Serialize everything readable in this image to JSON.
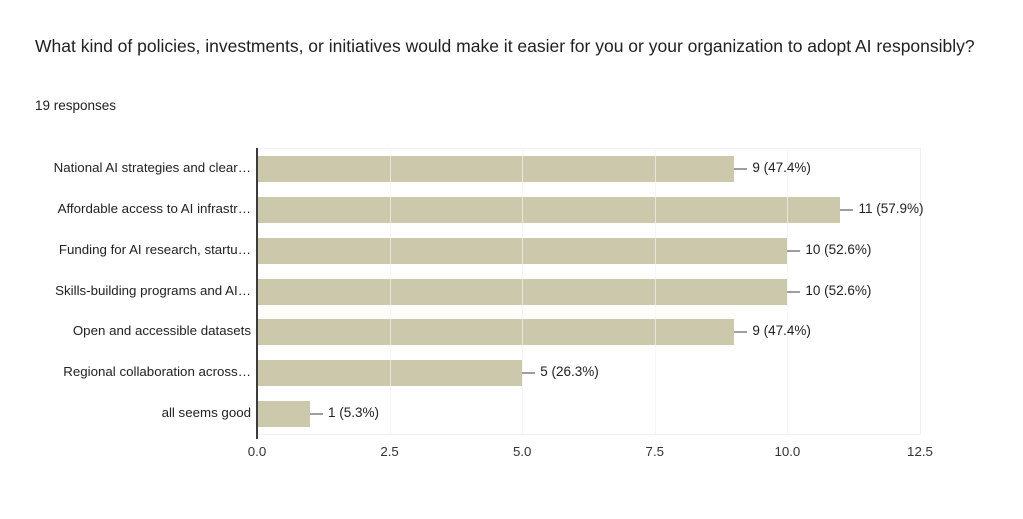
{
  "header": {
    "title": "What kind of policies, investments, or initiatives would make it easier for you or your organization to adopt AI responsibly?",
    "responses_label": "19 responses"
  },
  "chart_data": {
    "type": "bar",
    "orientation": "horizontal",
    "title": "What kind of policies, investments, or initiatives would make it easier for you or your organization to adopt AI responsibly?",
    "subtitle": "19 responses",
    "categories": [
      "National AI strategies and clear…",
      "Affordable access to AI infrastr…",
      "Funding for AI research, startu…",
      "Skills-building programs and AI…",
      "Open and accessible datasets",
      "Regional collaboration across…",
      "all seems good"
    ],
    "values": [
      9,
      11,
      10,
      10,
      9,
      5,
      1
    ],
    "percentages": [
      47.4,
      57.9,
      52.6,
      52.6,
      47.4,
      26.3,
      5.3
    ],
    "value_labels": [
      "9 (47.4%)",
      "11 (57.9%)",
      "10 (52.6%)",
      "10 (52.6%)",
      "9 (47.4%)",
      "5 (26.3%)",
      "1 (5.3%)"
    ],
    "x_ticks": [
      "0.0",
      "2.5",
      "5.0",
      "7.5",
      "10.0",
      "12.5"
    ],
    "x_tick_values": [
      0,
      2.5,
      5,
      7.5,
      10,
      12.5
    ],
    "xlim": [
      0,
      12.5
    ],
    "grid": true,
    "legend": "none",
    "colors": {
      "bar": "#cbc8ab",
      "axis_line": "#3c3c3c",
      "gridline": "#eaeaea",
      "connector": "#9e9e9e",
      "text": "#212121"
    }
  }
}
